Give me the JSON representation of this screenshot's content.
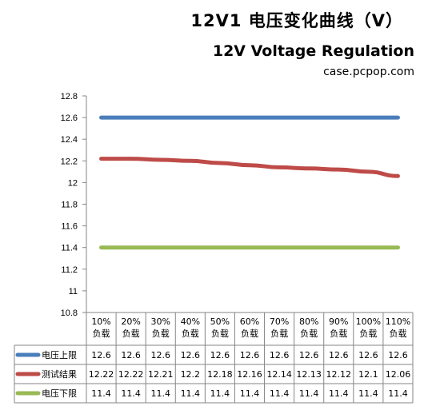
{
  "header": {
    "title": "12V1 电压变化曲线（V）",
    "subtitle": "12V Voltage Regulation",
    "source": "case.pcpop.com"
  },
  "chart_data": {
    "type": "line",
    "categories": [
      "10%\n负载",
      "20%\n负载",
      "30%\n负载",
      "40%\n负载",
      "50%\n负载",
      "60%\n负载",
      "70%\n负载",
      "80%\n负载",
      "90%\n负载",
      "100%\n负载",
      "110%\n负载"
    ],
    "series": [
      {
        "name": "电压上限",
        "color": "#4a7ebb",
        "values": [
          12.6,
          12.6,
          12.6,
          12.6,
          12.6,
          12.6,
          12.6,
          12.6,
          12.6,
          12.6,
          12.6
        ],
        "labels": [
          "12.6",
          "12.6",
          "12.6",
          "12.6",
          "12.6",
          "12.6",
          "12.6",
          "12.6",
          "12.6",
          "12.6",
          "12.6"
        ]
      },
      {
        "name": "测试结果",
        "color": "#be4b48",
        "values": [
          12.22,
          12.22,
          12.21,
          12.2,
          12.18,
          12.16,
          12.14,
          12.13,
          12.12,
          12.1,
          12.06
        ],
        "labels": [
          "12.22",
          "12.22",
          "12.21",
          "12.2",
          "12.18",
          "12.16",
          "12.14",
          "12.13",
          "12.12",
          "12.1",
          "12.06"
        ]
      },
      {
        "name": "电压下限",
        "color": "#98b954",
        "values": [
          11.4,
          11.4,
          11.4,
          11.4,
          11.4,
          11.4,
          11.4,
          11.4,
          11.4,
          11.4,
          11.4
        ],
        "labels": [
          "11.4",
          "11.4",
          "11.4",
          "11.4",
          "11.4",
          "11.4",
          "11.4",
          "11.4",
          "11.4",
          "11.4",
          "11.4"
        ]
      }
    ],
    "ylim": [
      10.8,
      12.8
    ],
    "yticks": [
      "12.8",
      "12.6",
      "12.4",
      "12.2",
      "12",
      "11.8",
      "11.6",
      "11.4",
      "11.2",
      "11",
      "10.8"
    ],
    "grid": false,
    "legend": "data-table"
  }
}
